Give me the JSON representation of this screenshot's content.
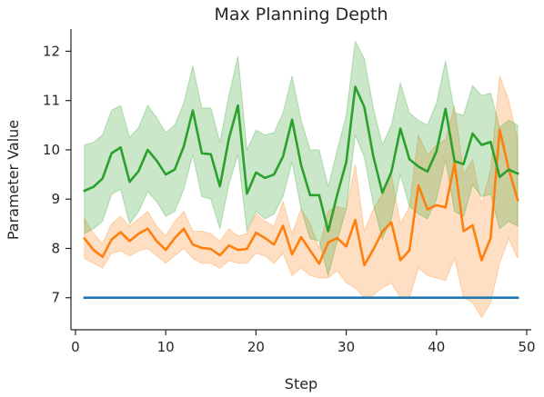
{
  "chart_data": {
    "type": "line",
    "title": "Max Planning Depth",
    "xlabel": "Step",
    "ylabel": "Parameter Value",
    "xlim": [
      -0.5,
      50.5
    ],
    "ylim": [
      6.35,
      12.45
    ],
    "xticks": [
      0,
      10,
      20,
      30,
      40,
      50
    ],
    "yticks": [
      7,
      8,
      9,
      10,
      11,
      12
    ],
    "grid": false,
    "legend": "none",
    "x": [
      1,
      2,
      3,
      4,
      5,
      6,
      7,
      8,
      9,
      10,
      11,
      12,
      13,
      14,
      15,
      16,
      17,
      18,
      19,
      20,
      21,
      22,
      23,
      24,
      25,
      26,
      27,
      28,
      29,
      30,
      31,
      32,
      33,
      34,
      35,
      36,
      37,
      38,
      39,
      40,
      41,
      42,
      43,
      44,
      45,
      46,
      47,
      48,
      49
    ],
    "series": [
      {
        "color": "#1f77b4",
        "values": [
          7,
          7,
          7,
          7,
          7,
          7,
          7,
          7,
          7,
          7,
          7,
          7,
          7,
          7,
          7,
          7,
          7,
          7,
          7,
          7,
          7,
          7,
          7,
          7,
          7,
          7,
          7,
          7,
          7,
          7,
          7,
          7,
          7,
          7,
          7,
          7,
          7,
          7,
          7,
          7,
          7,
          7,
          7,
          7,
          7,
          7,
          7,
          7,
          7
        ]
      },
      {
        "color": "#ff7f0e",
        "values": [
          8.2,
          7.97,
          7.83,
          8.18,
          8.33,
          8.15,
          8.3,
          8.4,
          8.15,
          7.97,
          8.21,
          8.4,
          8.08,
          8.01,
          7.99,
          7.86,
          8.06,
          7.97,
          7.99,
          8.32,
          8.21,
          8.08,
          8.46,
          7.88,
          8.23,
          7.96,
          7.69,
          8.12,
          8.21,
          8.04,
          8.58,
          7.66,
          7.98,
          8.34,
          8.53,
          7.76,
          7.96,
          9.28,
          8.79,
          8.88,
          8.83,
          9.73,
          8.35,
          8.47,
          7.76,
          8.21,
          10.41,
          9.61,
          8.98
        ],
        "lower": [
          7.8,
          7.7,
          7.6,
          7.9,
          7.95,
          7.85,
          7.95,
          8.0,
          7.85,
          7.7,
          7.85,
          8.0,
          7.8,
          7.7,
          7.7,
          7.6,
          7.75,
          7.7,
          7.7,
          7.9,
          7.85,
          7.7,
          7.9,
          7.45,
          7.6,
          7.45,
          7.4,
          7.4,
          7.55,
          7.3,
          7.2,
          7.0,
          7.05,
          7.2,
          7.3,
          7.0,
          7.0,
          7.6,
          7.45,
          7.4,
          7.35,
          7.8,
          7.0,
          6.9,
          6.6,
          6.9,
          7.7,
          8.2,
          7.8
        ],
        "upper": [
          8.6,
          8.3,
          8.1,
          8.5,
          8.65,
          8.45,
          8.6,
          8.75,
          8.45,
          8.25,
          8.55,
          8.75,
          8.35,
          8.35,
          8.3,
          8.15,
          8.4,
          8.25,
          8.3,
          8.7,
          8.55,
          8.45,
          8.95,
          8.3,
          8.8,
          8.5,
          8.0,
          8.75,
          8.85,
          8.8,
          9.7,
          8.35,
          8.8,
          9.1,
          9.5,
          8.5,
          8.85,
          10.3,
          9.9,
          10.1,
          10.2,
          10.9,
          9.5,
          9.8,
          8.9,
          9.6,
          11.5,
          11.0,
          10.2
        ]
      },
      {
        "color": "#2ca02c",
        "values": [
          9.17,
          9.25,
          9.42,
          9.93,
          10.05,
          9.35,
          9.57,
          10.0,
          9.78,
          9.5,
          9.6,
          10.07,
          10.8,
          9.93,
          9.91,
          9.26,
          10.23,
          10.9,
          9.11,
          9.54,
          9.43,
          9.5,
          9.87,
          10.61,
          9.69,
          9.08,
          9.08,
          8.35,
          9.09,
          9.75,
          11.28,
          10.87,
          9.87,
          9.13,
          9.55,
          10.43,
          9.81,
          9.66,
          9.56,
          9.97,
          10.83,
          9.77,
          9.71,
          10.33,
          10.1,
          10.16,
          9.45,
          9.6,
          9.52
        ],
        "lower": [
          8.3,
          8.4,
          8.55,
          9.1,
          9.2,
          8.5,
          8.75,
          9.15,
          8.95,
          8.65,
          8.75,
          9.2,
          9.9,
          9.05,
          9.0,
          8.4,
          9.3,
          9.9,
          8.35,
          8.75,
          8.6,
          8.7,
          9.05,
          9.75,
          8.8,
          8.2,
          8.15,
          7.45,
          8.15,
          8.8,
          10.3,
          9.85,
          8.9,
          8.2,
          8.6,
          9.5,
          8.85,
          8.7,
          8.6,
          9.0,
          9.8,
          8.75,
          8.65,
          9.3,
          9.05,
          9.1,
          8.4,
          8.55,
          8.45
        ],
        "upper": [
          10.1,
          10.15,
          10.3,
          10.8,
          10.9,
          10.25,
          10.45,
          10.9,
          10.65,
          10.35,
          10.5,
          10.95,
          11.7,
          10.85,
          10.85,
          10.15,
          11.1,
          11.9,
          10.0,
          10.4,
          10.3,
          10.35,
          10.75,
          11.5,
          10.6,
          10.0,
          10.0,
          9.25,
          10.0,
          10.7,
          12.2,
          11.85,
          10.85,
          10.1,
          10.5,
          11.35,
          10.75,
          10.6,
          10.5,
          10.95,
          11.8,
          10.75,
          10.7,
          11.3,
          11.1,
          11.15,
          10.45,
          10.6,
          10.5
        ]
      }
    ]
  }
}
